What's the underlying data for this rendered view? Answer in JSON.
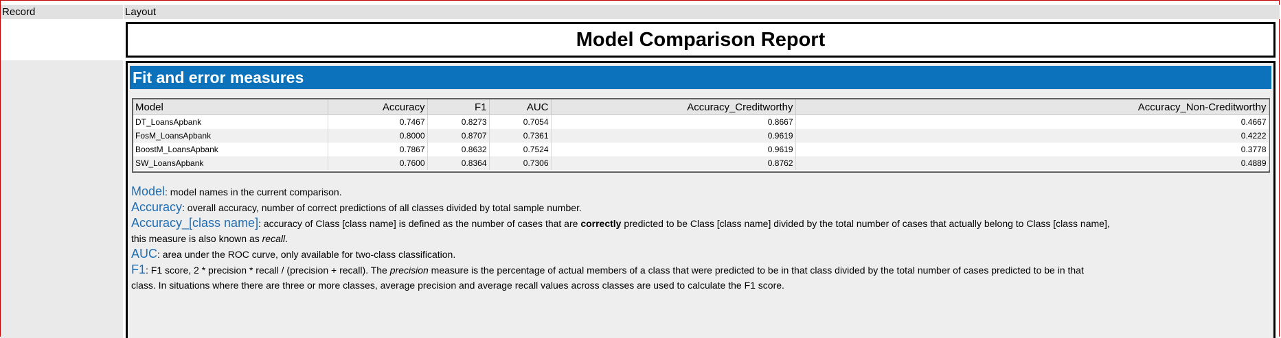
{
  "header": {
    "record_label": "Record",
    "layout_label": "Layout"
  },
  "report": {
    "title": "Model Comparison Report",
    "section_title": "Fit and error measures",
    "table": {
      "columns": [
        "Model",
        "Accuracy",
        "F1",
        "AUC",
        "Accuracy_Creditworthy",
        "Accuracy_Non-Creditworthy"
      ],
      "rows": [
        [
          "DT_LoansApbank",
          "0.7467",
          "0.8273",
          "0.7054",
          "0.8667",
          "0.4667"
        ],
        [
          "FosM_LoansApbank",
          "0.8000",
          "0.8707",
          "0.7361",
          "0.9619",
          "0.4222"
        ],
        [
          "BoostM_LoansApbank",
          "0.7867",
          "0.8632",
          "0.7524",
          "0.9619",
          "0.3778"
        ],
        [
          "SW_LoansApbank",
          "0.7600",
          "0.8364",
          "0.7306",
          "0.8762",
          "0.4889"
        ]
      ]
    },
    "definitions": {
      "model": {
        "term": "Model",
        "text": ": model names in the current comparison."
      },
      "accuracy": {
        "term": "Accuracy",
        "text": ": overall accuracy, number of correct predictions of all classes divided by total sample number."
      },
      "accuracy_class": {
        "term": "Accuracy_[class name]",
        "text_a": ": accuracy of Class [class name] is defined as the number of cases that are ",
        "bold": "correctly",
        "text_b": " predicted to be Class [class name] divided by the total number of cases that actually belong to Class [class name],",
        "text_c": "this measure is also known as ",
        "italic": "recall",
        "text_d": "."
      },
      "auc": {
        "term": "AUC",
        "text": ": area under the ROC curve, only available for two-class classification."
      },
      "f1": {
        "term": "F1",
        "text_a": ": F1 score, 2 * precision * recall / (precision + recall). The ",
        "italic": "precision",
        "text_b": " measure is the percentage of actual members of a class that were predicted to be in that class divided by the total number of cases predicted to be in that",
        "text_c": "class. In situations where there are three or more classes, average precision and average recall values across classes are used to calculate the F1 score."
      }
    }
  }
}
